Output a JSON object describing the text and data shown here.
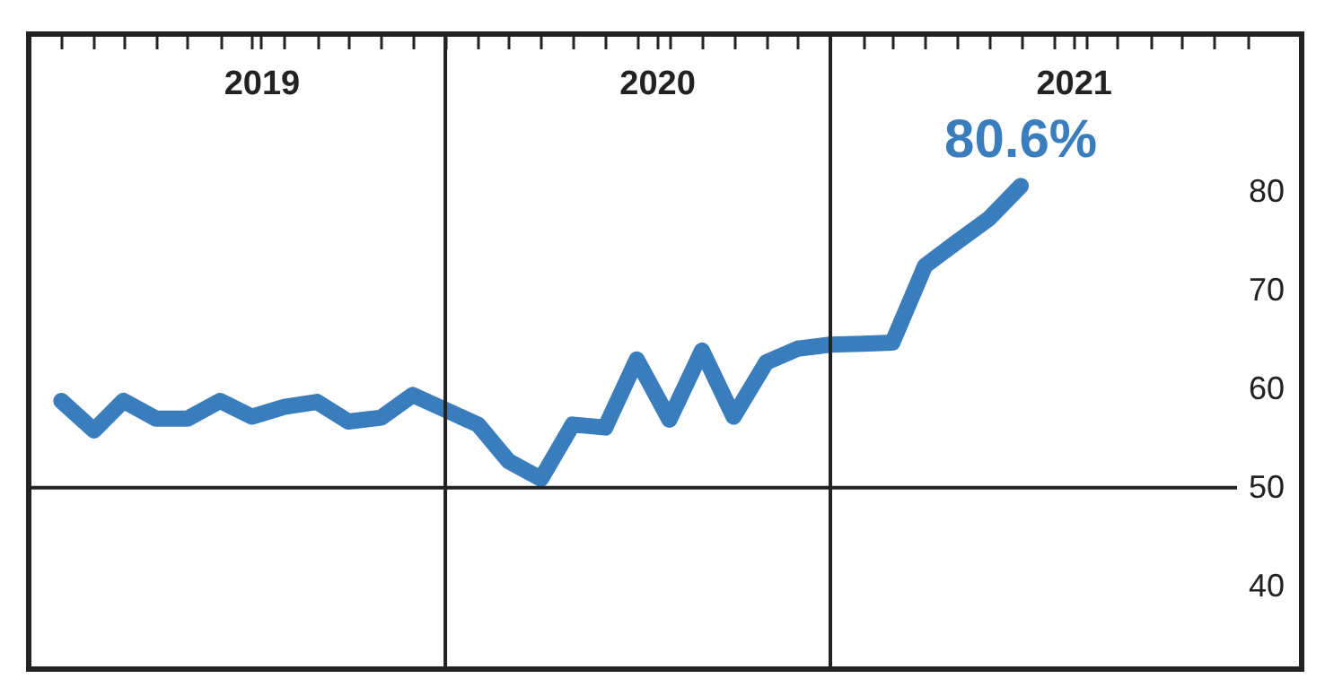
{
  "chart_data": {
    "type": "line",
    "x": [
      "2019-01",
      "2019-02",
      "2019-03",
      "2019-04",
      "2019-05",
      "2019-06",
      "2019-07",
      "2019-08",
      "2019-09",
      "2019-10",
      "2019-11",
      "2019-12",
      "2020-01",
      "2020-02",
      "2020-03",
      "2020-04",
      "2020-05",
      "2020-06",
      "2020-07",
      "2020-08",
      "2020-09",
      "2020-10",
      "2020-11",
      "2020-12",
      "2021-01",
      "2021-02",
      "2021-03",
      "2021-04",
      "2021-05",
      "2021-06",
      "2021-07"
    ],
    "series": [
      {
        "color": "#3a7dbd",
        "values": [
          58.8,
          55.8,
          58.8,
          57.0,
          57.0,
          58.8,
          57.2,
          58.2,
          58.7,
          56.7,
          57.1,
          59.4,
          57.9,
          56.4,
          52.7,
          50.9,
          56.4,
          56.1,
          63.0,
          56.9,
          63.9,
          57.2,
          62.7,
          64.1,
          64.5,
          64.6,
          64.7,
          72.5,
          74.9,
          77.3,
          80.6
        ]
      }
    ],
    "xlim": [
      "2018-12-01",
      "2022-03-25"
    ],
    "xticks": [
      {
        "value": "2019-01-01",
        "label": null
      },
      {
        "value": "2019-02-01",
        "label": null
      },
      {
        "value": "2019-03-01",
        "label": null
      },
      {
        "value": "2019-04-01",
        "label": null
      },
      {
        "value": "2019-05-01",
        "label": null
      },
      {
        "value": "2019-06-01",
        "label": null
      },
      {
        "value": "2019-07-01",
        "label": null
      },
      {
        "value": "2019-08-01",
        "label": null
      },
      {
        "value": "2019-09-01",
        "label": null
      },
      {
        "value": "2019-10-01",
        "label": null
      },
      {
        "value": "2019-11-01",
        "label": null
      },
      {
        "value": "2019-12-01",
        "label": null
      },
      {
        "value": "2020-01-01",
        "label": null
      },
      {
        "value": "2020-02-01",
        "label": null
      },
      {
        "value": "2020-03-01",
        "label": null
      },
      {
        "value": "2020-04-01",
        "label": null
      },
      {
        "value": "2020-05-01",
        "label": null
      },
      {
        "value": "2020-06-01",
        "label": null
      },
      {
        "value": "2020-07-01",
        "label": null
      },
      {
        "value": "2020-08-01",
        "label": null
      },
      {
        "value": "2020-09-01",
        "label": null
      },
      {
        "value": "2020-10-01",
        "label": null
      },
      {
        "value": "2020-11-01",
        "label": null
      },
      {
        "value": "2020-12-01",
        "label": null
      },
      {
        "value": "2021-01-01",
        "label": null
      },
      {
        "value": "2021-02-01",
        "label": null
      },
      {
        "value": "2021-03-01",
        "label": null
      },
      {
        "value": "2021-04-01",
        "label": null
      },
      {
        "value": "2021-05-01",
        "label": null
      },
      {
        "value": "2021-06-01",
        "label": null
      },
      {
        "value": "2021-07-01",
        "label": null
      },
      {
        "value": "2021-08-01",
        "label": null
      },
      {
        "value": "2021-09-01",
        "label": null
      },
      {
        "value": "2021-10-01",
        "label": null
      },
      {
        "value": "2021-11-01",
        "label": null
      },
      {
        "value": "2021-12-01",
        "label": null
      },
      {
        "value": "2022-01-01",
        "label": null
      },
      {
        "value": "2022-02-01",
        "label": null
      },
      {
        "value": "2019-07-10",
        "label": "2019"
      },
      {
        "value": "2020-07-20",
        "label": "2020"
      },
      {
        "value": "2021-08-20",
        "label": "2021"
      }
    ],
    "ylim": [
      31.6,
      96
    ],
    "yticks": [
      40,
      50,
      60,
      70,
      80
    ],
    "ref_lines": [
      {
        "axis": "y",
        "value": 50,
        "color": "#222222"
      },
      {
        "axis": "x",
        "value": "2020-01-01",
        "color": "#222222"
      },
      {
        "axis": "x",
        "value": "2021-01-01",
        "color": "#222222"
      }
    ],
    "annotations": [
      {
        "text": "80.6%",
        "x": "2021-07",
        "y": 80.6
      }
    ],
    "marker": "none",
    "line_style": "solid"
  }
}
